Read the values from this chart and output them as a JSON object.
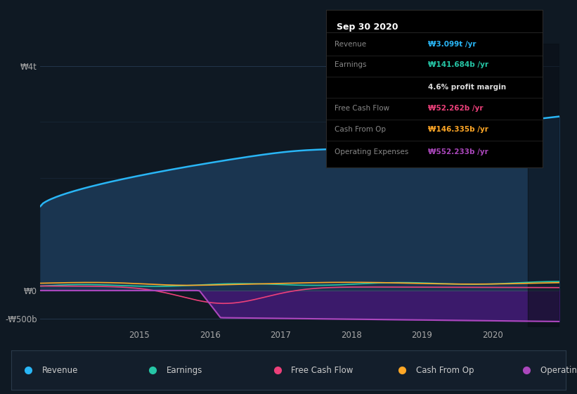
{
  "bg_color": "#0f1923",
  "plot_bg_color": "#0f1923",
  "dark_band_color": "#0a1218",
  "colors": {
    "revenue": "#29b6f6",
    "earnings": "#26c6a6",
    "free_cash_flow": "#ec407a",
    "cash_from_op": "#ffa726",
    "operating_expenses": "#ab47bc",
    "revenue_fill": "#1a3550",
    "operating_fill": "#3b1a6b"
  },
  "legend": [
    {
      "label": "Revenue",
      "color": "#29b6f6"
    },
    {
      "label": "Earnings",
      "color": "#26c6a6"
    },
    {
      "label": "Free Cash Flow",
      "color": "#ec407a"
    },
    {
      "label": "Cash From Op",
      "color": "#ffa726"
    },
    {
      "label": "Operating Expenses",
      "color": "#ab47bc"
    }
  ],
  "annotation": {
    "title": "Sep 30 2020",
    "rows": [
      {
        "label": "Revenue",
        "value": "₩3.099t /yr",
        "value_color": "#29b6f6"
      },
      {
        "label": "Earnings",
        "value": "₩141.684b /yr",
        "value_color": "#26c6a6"
      },
      {
        "label": "",
        "value": "4.6% profit margin",
        "value_color": "#dddddd"
      },
      {
        "label": "Free Cash Flow",
        "value": "₩52.262b /yr",
        "value_color": "#ec407a"
      },
      {
        "label": "Cash From Op",
        "value": "₩146.335b /yr",
        "value_color": "#ffa726"
      },
      {
        "label": "Operating Expenses",
        "value": "₩552.233b /yr",
        "value_color": "#ab47bc"
      }
    ]
  },
  "xlim": [
    2013.6,
    2020.95
  ],
  "ylim": [
    -650000000000.0,
    4400000000000.0
  ],
  "ytick_vals": [
    4000000000000.0,
    0,
    -500000000000.0
  ],
  "ytick_labels": [
    "₩4t",
    "₩0",
    "-₩500b"
  ],
  "xtick_vals": [
    2015,
    2016,
    2017,
    2018,
    2019,
    2020
  ],
  "xtick_labels": [
    "2015",
    "2016",
    "2017",
    "2018",
    "2019",
    "2020"
  ]
}
